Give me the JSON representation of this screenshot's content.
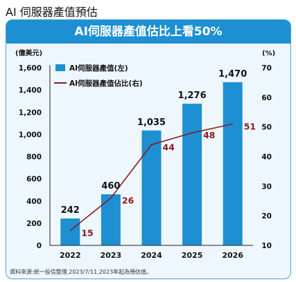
{
  "page_title": "AI 伺服器產值預估",
  "source": "資料來源:統一投信整理,2023/7/11,2023年起為預估值。",
  "chart_data": {
    "type": "bar",
    "title": "AI伺服器產值估比上看50%",
    "categories": [
      "2022",
      "2023",
      "2024",
      "2025",
      "2026"
    ],
    "left_axis_unit": "(億美元)",
    "right_axis_unit": "(%)",
    "ylim": [
      0,
      1600
    ],
    "yticks": [
      "0",
      "200",
      "400",
      "600",
      "800",
      "1,000",
      "1,200",
      "1,400",
      "1,600"
    ],
    "y2lim": [
      10,
      70
    ],
    "y2ticks": [
      "10",
      "20",
      "30",
      "40",
      "50",
      "60",
      "70"
    ],
    "legend_position": "top-left",
    "grid": false,
    "series": [
      {
        "name": "AI伺服器產值(左)",
        "type": "bar",
        "axis": "left",
        "color": "#1d8fd2",
        "values": [
          242,
          460,
          1035,
          1276,
          1470
        ],
        "labels": [
          "242",
          "460",
          "1,035",
          "1,276",
          "1,470"
        ]
      },
      {
        "name": "AI伺服器產值佔比(右)",
        "type": "line",
        "axis": "right",
        "color": "#8b1a1a",
        "values": [
          15,
          26,
          44,
          48,
          51
        ],
        "labels": [
          "15",
          "26",
          "44",
          "48",
          "51"
        ]
      }
    ]
  }
}
